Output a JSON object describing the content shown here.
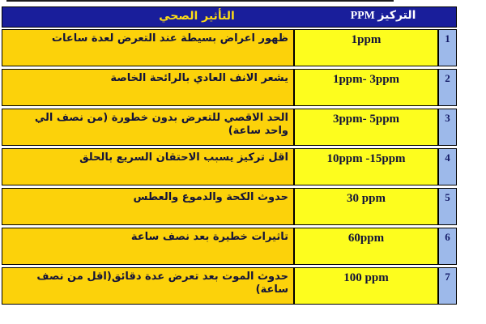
{
  "header": {
    "effect_label": "التأثير الصحي",
    "ppm_label": "التركيز PPM"
  },
  "rows": [
    {
      "num": "1",
      "ppm": "1ppm",
      "effect": "ظهور اعراض بسيطة عند التعرض لعدة ساعات"
    },
    {
      "num": "2",
      "ppm": "1ppm- 3ppm",
      "effect": "يشعر الانف العادي بالرائحة الخاصة"
    },
    {
      "num": "3",
      "ppm": "3ppm- 5ppm",
      "effect": "الحد الاقصي للتعرض بدون خطورة (من نصف الي واحد ساعة)"
    },
    {
      "num": "4",
      "ppm": "10ppm -15ppm",
      "effect": "اقل تركيز يسبب الاحتقان السريع بالحلق"
    },
    {
      "num": "5",
      "ppm": "30 ppm",
      "effect": "حدوث الكحة والدموع والعطس"
    },
    {
      "num": "6",
      "ppm": "60ppm",
      "effect": "تاثيرات خطيرة بعد نصف ساعة"
    },
    {
      "num": "7",
      "ppm": "100 ppm",
      "effect": "حدوث الموت بعد تعرض عدة دقائق(اقل من نصف ساعة)"
    }
  ],
  "colors": {
    "header_bg": "#191E9B",
    "header_effect_text": "#FFDE14",
    "header_ppm_text": "#FFFFFF",
    "effect_bg": "#FCD20A",
    "ppm_bg": "#FDFD1E",
    "num_bg": "#9DB9EA",
    "num_text": "#141A66",
    "body_text": "#131339"
  },
  "chart_data": {
    "type": "table",
    "columns": [
      "التأثير الصحي",
      "التركيز PPM",
      "#"
    ],
    "rows": [
      [
        "ظهور اعراض بسيطة عند التعرض لعدة ساعات",
        "1ppm",
        "1"
      ],
      [
        "يشعر الانف العادي بالرائحة الخاصة",
        "1ppm- 3ppm",
        "2"
      ],
      [
        "الحد الاقصي للتعرض بدون خطورة (من نصف الي واحد ساعة)",
        "3ppm- 5ppm",
        "3"
      ],
      [
        "اقل تركيز يسبب الاحتقان السريع بالحلق",
        "10ppm -15ppm",
        "4"
      ],
      [
        "حدوث الكحة والدموع والعطس",
        "30 ppm",
        "5"
      ],
      [
        "تاثيرات خطيرة بعد نصف ساعة",
        "60ppm",
        "6"
      ],
      [
        "حدوث الموت بعد تعرض عدة دقائق(اقل من نصف ساعة)",
        "100 ppm",
        "7"
      ]
    ]
  }
}
